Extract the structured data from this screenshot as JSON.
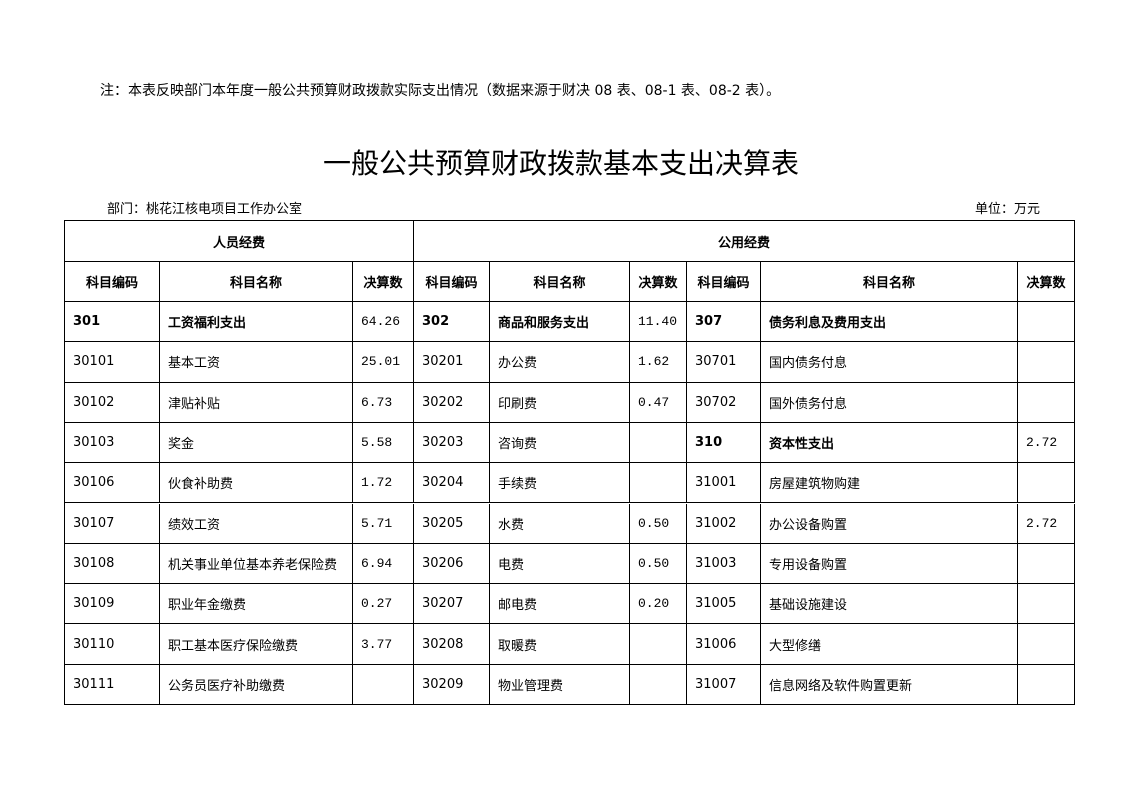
{
  "note": "注：本表反映部门本年度一般公共预算财政拨款实际支出情况（数据来源于财决 08 表、08-1 表、08-2 表）。",
  "title": "一般公共预算财政拨款基本支出决算表",
  "department": "部门：桃花江核电项目工作办公室",
  "unit": "单位：万元",
  "table": {
    "groups": [
      "人员经费",
      "公用经费"
    ],
    "columns": [
      "科目编码",
      "科目名称",
      "决算数",
      "科目编码",
      "科目名称",
      "决算数",
      "科目编码",
      "科目名称",
      "决算数"
    ],
    "rows": [
      [
        "301",
        "工资福利支出",
        "64.26",
        "302",
        "商品和服务支出",
        "11.40",
        "307",
        "债务利息及费用支出",
        null
      ],
      [
        "30101",
        "基本工资",
        "25.01",
        "30201",
        "办公费",
        "1.62",
        "30701",
        "国内债务付息",
        null
      ],
      [
        "30102",
        "津贴补贴",
        "6.73",
        "30202",
        "印刷费",
        "0.47",
        "30702",
        "国外债务付息",
        null
      ],
      [
        "30103",
        "奖金",
        "5.58",
        "30203",
        "咨询费",
        null,
        "310",
        "资本性支出",
        "2.72"
      ],
      [
        "30106",
        "伙食补助费",
        "1.72",
        "30204",
        "手续费",
        null,
        "31001",
        "房屋建筑物购建",
        null
      ],
      [
        "30107",
        "绩效工资",
        "5.71",
        "30205",
        "水费",
        "0.50",
        "31002",
        "办公设备购置",
        "2.72"
      ],
      [
        "30108",
        "机关事业单位基本养老保险费",
        "6.94",
        "30206",
        "电费",
        "0.50",
        "31003",
        "专用设备购置",
        null
      ],
      [
        "30109",
        "职业年金缴费",
        "0.27",
        "30207",
        "邮电费",
        "0.20",
        "31005",
        "基础设施建设",
        null
      ],
      [
        "30110",
        "职工基本医疗保险缴费",
        "3.77",
        "30208",
        "取暖费",
        null,
        "31006",
        "大型修缮",
        null
      ],
      [
        "30111",
        "公务员医疗补助缴费",
        null,
        "30209",
        "物业管理费",
        null,
        "31007",
        "信息网络及软件购置更新",
        null
      ]
    ]
  }
}
